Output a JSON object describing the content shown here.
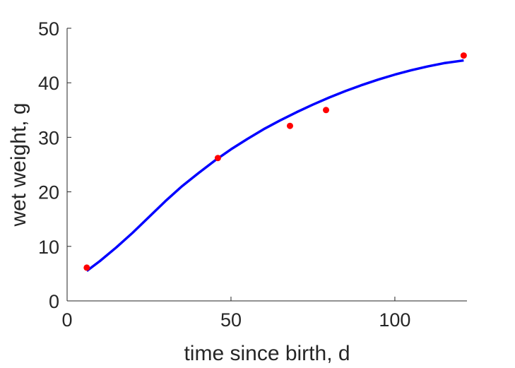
{
  "chart_data": {
    "type": "scatter",
    "xlabel": "time since birth, d",
    "ylabel": "wet weight, g",
    "xlim": [
      0,
      122
    ],
    "ylim": [
      0,
      50
    ],
    "x_ticks": [
      0,
      50,
      100
    ],
    "y_ticks": [
      0,
      10,
      20,
      30,
      40,
      50
    ],
    "x_tick_labels": [
      "0",
      "50",
      "100"
    ],
    "y_tick_labels": [
      "0",
      "10",
      "20",
      "30",
      "40",
      "50"
    ],
    "grid": false,
    "series": [
      {
        "kind": "scatter",
        "color": "#ff0000",
        "x": [
          6,
          46,
          68,
          79,
          121
        ],
        "y": [
          6.1,
          26.2,
          32.1,
          35.0,
          45.0
        ]
      },
      {
        "kind": "line",
        "color": "#0000ff",
        "x": [
          6,
          10,
          15,
          20,
          25,
          30,
          35,
          40,
          45,
          50,
          55,
          60,
          65,
          70,
          75,
          80,
          85,
          90,
          95,
          100,
          105,
          110,
          115,
          121
        ],
        "y": [
          5.5,
          7.3,
          9.8,
          12.5,
          15.4,
          18.3,
          21.0,
          23.4,
          25.7,
          27.8,
          29.7,
          31.5,
          33.1,
          34.6,
          36.0,
          37.3,
          38.5,
          39.6,
          40.6,
          41.5,
          42.3,
          43.0,
          43.6,
          44.1
        ]
      }
    ]
  }
}
